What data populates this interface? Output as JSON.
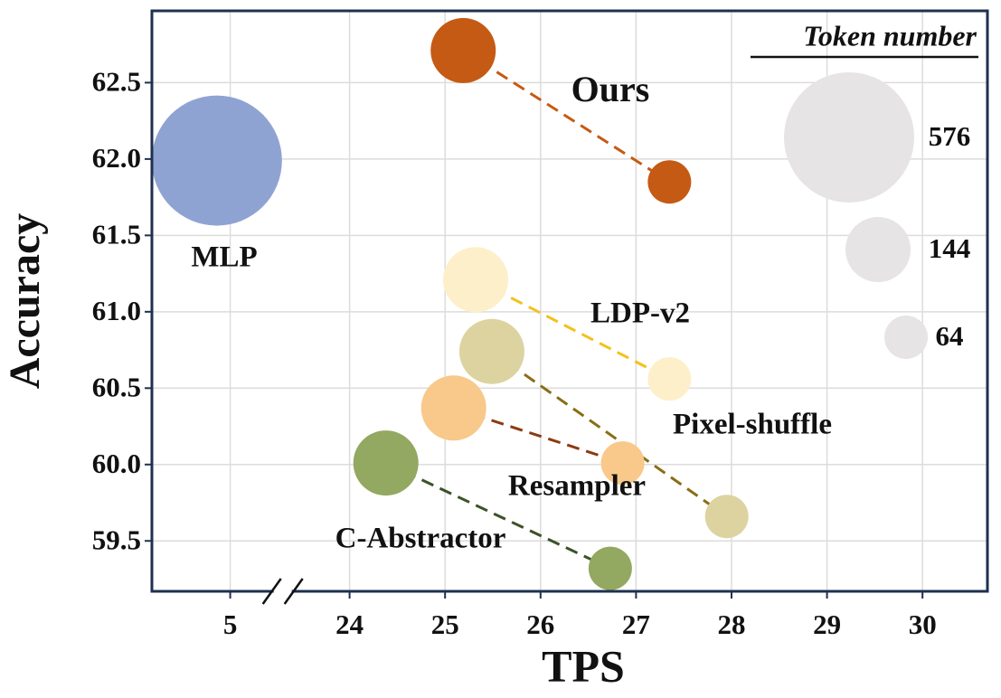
{
  "chart_data": {
    "type": "bubble",
    "xlabel": "TPS",
    "ylabel": "Accuracy",
    "xlim": [
      4.18,
      30.68
    ],
    "x_break": [
      5.55,
      23.3
    ],
    "ylim": [
      59.17,
      62.97
    ],
    "xticks": [
      5,
      24,
      25,
      26,
      27,
      28,
      29,
      30
    ],
    "yticks": [
      62.5,
      {
        "value": 62,
        "label": "62.0"
      },
      61.5,
      {
        "value": 61,
        "label": "61.0"
      },
      60.5,
      {
        "value": 60,
        "label": "60.0"
      },
      59.5
    ],
    "grid": true,
    "series": [
      {
        "name": "MLP",
        "color": "#8fa3d3",
        "line_color": "#8fa3d3",
        "x": [
          4.86
        ],
        "y": [
          61.99
        ],
        "size": [
          576
        ]
      },
      {
        "name": "Ours",
        "color": "#c55a14",
        "line_color": "#c55a14",
        "x": [
          25.19,
          27.35
        ],
        "y": [
          62.71,
          61.85
        ],
        "size": [
          144,
          64
        ]
      },
      {
        "name": "LDP-v2",
        "color": "#fdefc9",
        "line_color": "#f2c21b",
        "x": [
          25.32,
          27.35
        ],
        "y": [
          61.21,
          60.56
        ],
        "size": [
          144,
          64
        ]
      },
      {
        "name": "Pixel-shuffle",
        "color": "#dcd3a1",
        "line_color": "#8a6d14",
        "x": [
          25.49,
          27.95
        ],
        "y": [
          60.74,
          59.66
        ],
        "size": [
          144,
          64
        ]
      },
      {
        "name": "Resampler",
        "color": "#f8c98a",
        "line_color": "#8b3a10",
        "x": [
          25.09,
          26.86
        ],
        "y": [
          60.37,
          60.01
        ],
        "size": [
          144,
          64
        ]
      },
      {
        "name": "C-Abstractor",
        "color": "#93a860",
        "line_color": "#3b5227",
        "x": [
          24.38,
          26.73
        ],
        "y": [
          60.01,
          59.32
        ],
        "size": [
          144,
          64
        ]
      }
    ],
    "size_legend": {
      "title": "Token number",
      "color": "#e6e4e5",
      "sizes": [
        576,
        144,
        64
      ]
    }
  }
}
